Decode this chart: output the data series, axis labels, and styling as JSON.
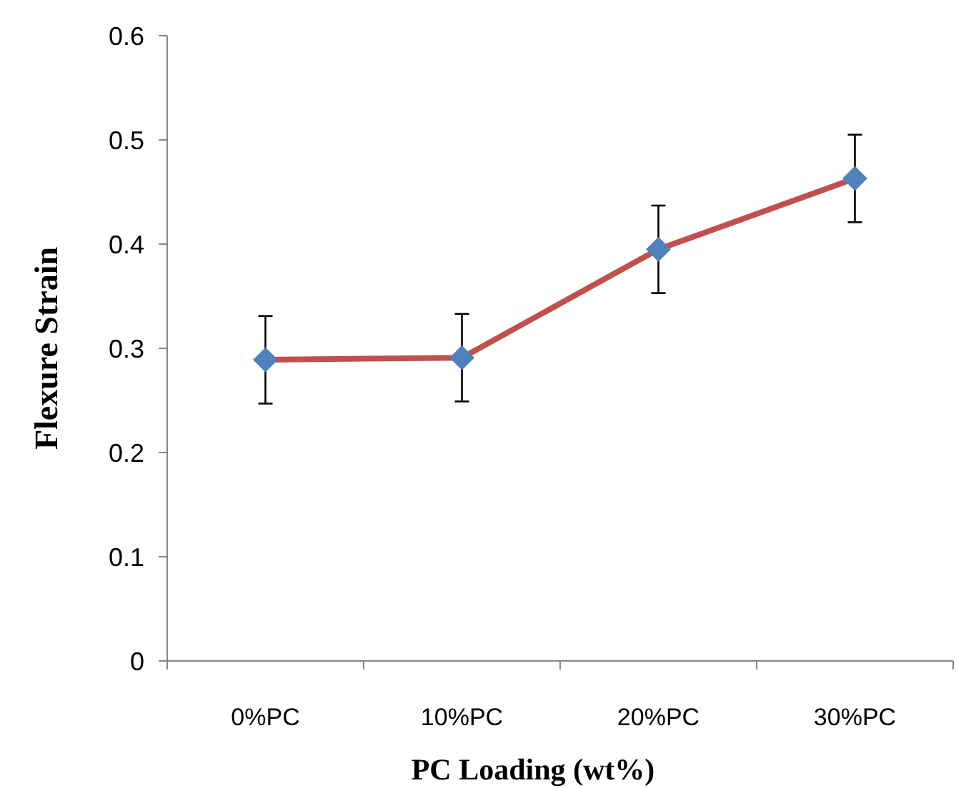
{
  "chart_data": {
    "type": "line",
    "xlabel": "PC Loading (wt%)",
    "ylabel": "Flexure Strain",
    "categories": [
      "0%PC",
      "10%PC",
      "20%PC",
      "30%PC"
    ],
    "series": [
      {
        "color": "#c0504d",
        "values": [
          0.289,
          0.291,
          0.395,
          0.463
        ],
        "errors": [
          0.042,
          0.042,
          0.042,
          0.042
        ]
      }
    ],
    "ylim": [
      0,
      0.6
    ],
    "yticks": [
      0,
      0.1,
      0.2,
      0.3,
      0.4,
      0.5,
      0.6
    ],
    "grid": false,
    "marker": "diamond",
    "line_style": "solid"
  }
}
